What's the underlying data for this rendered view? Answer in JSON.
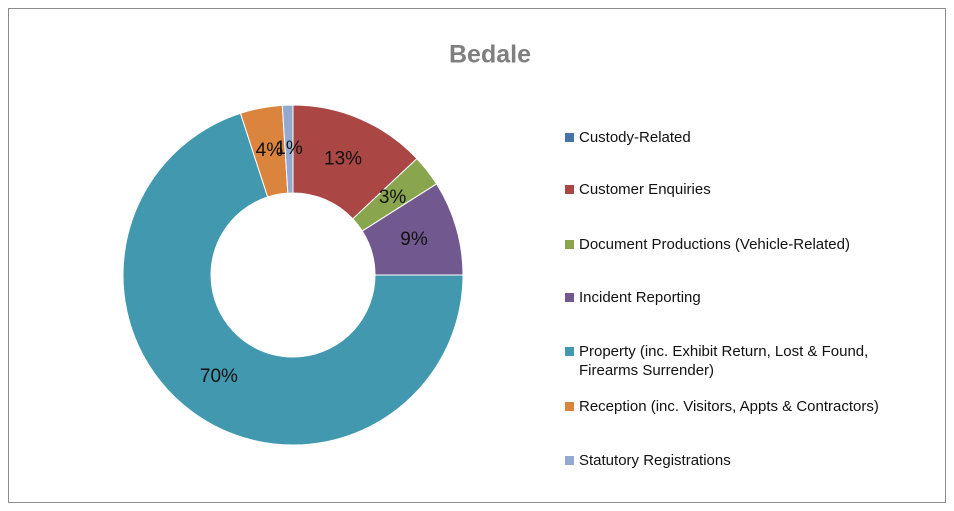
{
  "chart_data": {
    "type": "donut",
    "title": "Bedale",
    "categories": [
      "Custody-Related",
      "Customer Enquiries",
      "Document Productions (Vehicle-Related)",
      "Incident Reporting",
      "Property (inc. Exhibit Return, Lost & Found, Firearms Surrender)",
      "Reception (inc. Visitors, Appts & Contractors)",
      "Statutory Registrations"
    ],
    "values": [
      0,
      13,
      3,
      9,
      70,
      4,
      1
    ],
    "value_labels": [
      null,
      "13%",
      "3%",
      "9%",
      "70%",
      "4%",
      "1%"
    ],
    "colors": [
      "#4572a7",
      "#aa4643",
      "#89a54e",
      "#71588f",
      "#4198af",
      "#db843d",
      "#93a9cf"
    ],
    "legend": "right"
  }
}
